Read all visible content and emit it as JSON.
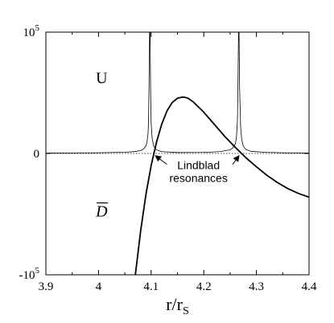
{
  "chart_data": {
    "type": "line",
    "xlabel": "r/r",
    "xlabel_sub": "S",
    "xlim": [
      3.9,
      4.4
    ],
    "ylim": [
      -100000,
      100000
    ],
    "xticks": [
      3.9,
      4.0,
      4.1,
      4.2,
      4.3,
      4.4
    ],
    "xtick_labels": [
      "3.9",
      "4",
      "4.1",
      "4.2",
      "4.3",
      "4.4"
    ],
    "yticks": [
      -100000,
      0,
      100000
    ],
    "ytick_labels": [
      {
        "base": "-10",
        "exp": "5"
      },
      {
        "base": "0",
        "exp": ""
      },
      {
        "base": "10",
        "exp": "5"
      }
    ],
    "grid": false,
    "legend": "none",
    "zero_line": "dotted",
    "series": [
      {
        "name": "U",
        "style": "thin",
        "resonances": [
          4.097,
          4.266
        ],
        "x": [
          3.9,
          3.95,
          4.0,
          4.05,
          4.07,
          4.08,
          4.085,
          4.09,
          4.092,
          4.094,
          4.095,
          4.096,
          4.097,
          4.098,
          4.099,
          4.1,
          4.102,
          4.105,
          4.11,
          4.12,
          4.15,
          4.2,
          4.23,
          4.25,
          4.255,
          4.26,
          4.262,
          4.264,
          4.265,
          4.266,
          4.267,
          4.268,
          4.27,
          4.272,
          4.275,
          4.28,
          4.29,
          4.32,
          4.35,
          4.4
        ],
        "values": [
          300,
          400,
          600,
          1000,
          1600,
          2400,
          3500,
          6000,
          9000,
          16000,
          26000,
          55000,
          100000,
          100000,
          50000,
          25000,
          12000,
          6000,
          3000,
          1500,
          800,
          900,
          1500,
          3000,
          4500,
          8000,
          13000,
          28000,
          60000,
          100000,
          100000,
          55000,
          22000,
          12000,
          6000,
          3200,
          1700,
          900,
          600,
          400
        ]
      },
      {
        "name": "D̅",
        "style": "thick",
        "x": [
          4.07,
          4.075,
          4.08,
          4.09,
          4.1,
          4.11,
          4.12,
          4.13,
          4.14,
          4.15,
          4.16,
          4.165,
          4.17,
          4.18,
          4.2,
          4.22,
          4.24,
          4.26,
          4.28,
          4.3,
          4.32,
          4.34,
          4.36,
          4.38,
          4.4
        ],
        "values": [
          -100000,
          -82000,
          -64000,
          -34000,
          -10000,
          9000,
          24000,
          35000,
          42000,
          45500,
          46500,
          46200,
          45500,
          42500,
          34000,
          24000,
          14000,
          5000,
          -3500,
          -11000,
          -18000,
          -24000,
          -29000,
          -33000,
          -36000
        ]
      }
    ],
    "annotations": [
      {
        "text_lines": [
          "Lindblad",
          "resonances"
        ],
        "points_to_x": [
          4.105,
          4.27
        ]
      }
    ],
    "curve_labels": {
      "U": "U",
      "D": "D"
    }
  }
}
